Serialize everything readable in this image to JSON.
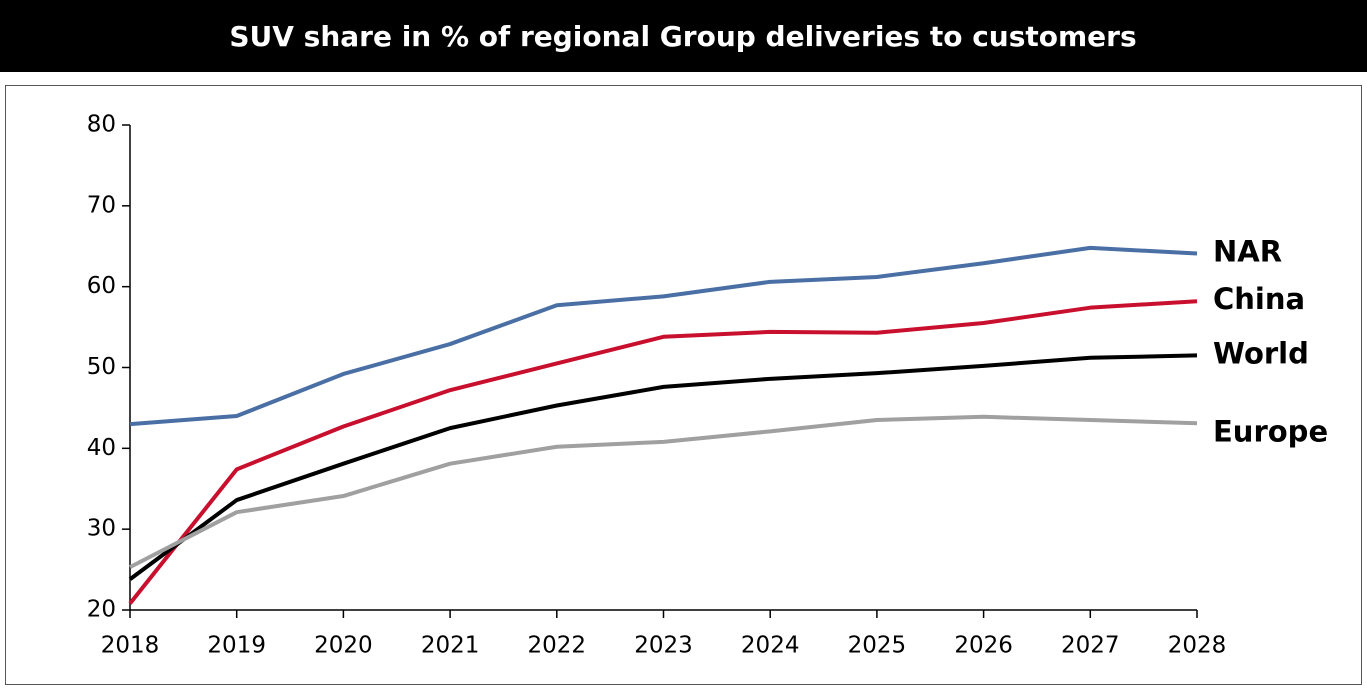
{
  "chart_data": {
    "type": "line",
    "title": "SUV share in % of regional Group deliveries to customers",
    "x": [
      2018,
      2019,
      2020,
      2021,
      2022,
      2023,
      2024,
      2025,
      2026,
      2027,
      2028
    ],
    "xlim": [
      2018,
      2028
    ],
    "xticks": [
      2018,
      2019,
      2020,
      2021,
      2022,
      2023,
      2024,
      2025,
      2026,
      2027,
      2028
    ],
    "ylim": [
      20,
      80
    ],
    "yticks": [
      20,
      30,
      40,
      50,
      60,
      70,
      80
    ],
    "grid": false,
    "series": [
      {
        "name": "NAR",
        "color": "#4a6fa5",
        "values": [
          43.0,
          44.0,
          49.2,
          52.9,
          57.7,
          58.8,
          60.6,
          61.2,
          62.9,
          64.8,
          64.1
        ]
      },
      {
        "name": "China",
        "color": "#c8102e",
        "values": [
          20.8,
          37.4,
          42.7,
          47.2,
          50.5,
          53.8,
          54.4,
          54.3,
          55.5,
          57.4,
          58.2
        ]
      },
      {
        "name": "World",
        "color": "#000000",
        "values": [
          23.8,
          33.6,
          38.1,
          42.5,
          45.3,
          47.6,
          48.6,
          49.3,
          50.2,
          51.2,
          51.5
        ]
      },
      {
        "name": "Europe",
        "color": "#a0a0a0",
        "values": [
          25.3,
          32.1,
          34.1,
          38.1,
          40.2,
          40.8,
          42.1,
          43.5,
          43.9,
          43.5,
          43.1
        ]
      }
    ]
  }
}
